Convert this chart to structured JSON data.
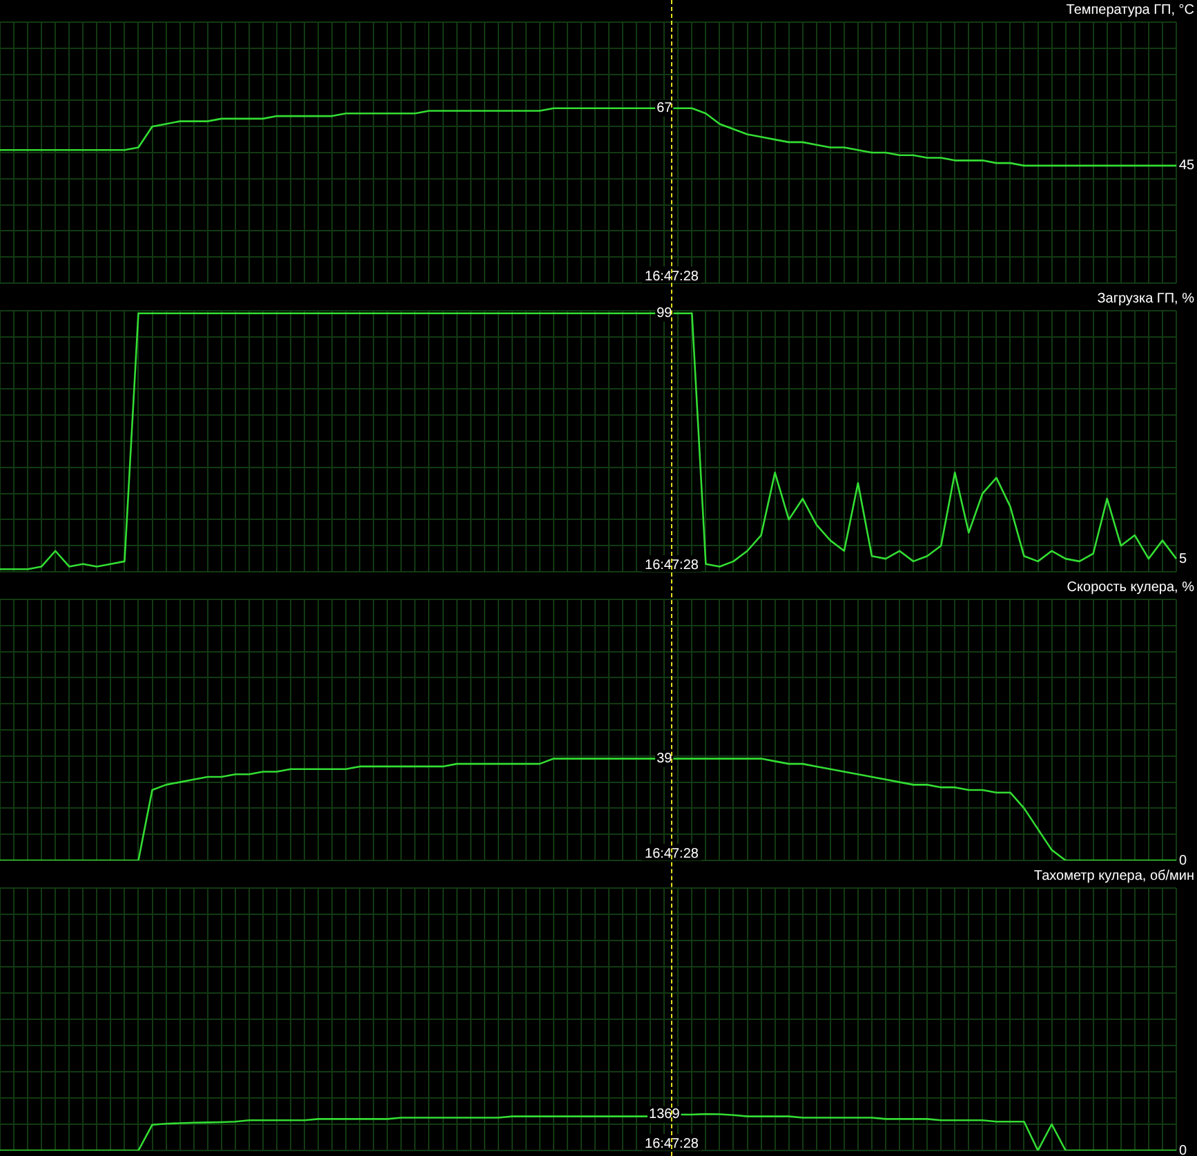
{
  "chart_data": [
    {
      "type": "line",
      "title": "Температура ГП, °C",
      "categories": [
        null,
        null,
        null,
        null,
        null,
        null,
        null,
        null,
        null,
        null,
        null,
        null,
        null,
        null,
        null,
        null,
        null,
        null,
        null,
        null,
        null,
        null,
        null,
        null,
        null,
        null,
        null,
        null,
        null,
        null,
        null,
        null,
        null,
        null,
        null,
        null,
        null,
        null,
        null,
        null,
        null,
        null,
        null,
        null,
        null,
        null,
        null,
        null,
        null,
        null,
        null,
        null,
        null,
        null,
        null,
        null,
        null,
        null,
        null,
        null,
        null,
        null,
        null,
        null,
        null,
        null,
        null,
        null,
        null,
        null,
        null,
        null,
        null,
        null,
        null,
        null,
        null,
        null,
        null,
        null,
        null,
        null,
        null,
        null,
        null,
        null
      ],
      "series": [
        {
          "color": "#33dd33",
          "values": [
            51,
            51,
            51,
            51,
            51,
            51,
            51,
            51,
            51,
            51,
            52,
            60,
            61,
            62,
            62,
            62,
            63,
            63,
            63,
            63,
            64,
            64,
            64,
            64,
            64,
            65,
            65,
            65,
            65,
            65,
            65,
            66,
            66,
            66,
            66,
            66,
            66,
            66,
            66,
            66,
            67,
            67,
            67,
            67,
            67,
            67,
            67,
            67,
            67,
            67,
            67,
            65,
            61,
            59,
            57,
            56,
            55,
            54,
            54,
            53,
            52,
            52,
            51,
            50,
            50,
            49,
            49,
            48,
            48,
            47,
            47,
            47,
            46,
            46,
            45,
            45,
            45,
            45,
            45,
            45,
            45,
            45,
            45,
            45,
            45,
            45
          ],
          "value_labels": [
            null,
            null,
            null,
            null,
            null,
            null,
            null,
            null,
            null,
            null,
            null,
            null,
            null,
            null,
            null,
            null,
            null,
            null,
            null,
            null,
            null,
            null,
            null,
            null,
            null,
            null,
            null,
            null,
            null,
            null,
            null,
            null,
            null,
            null,
            null,
            null,
            null,
            null,
            null,
            null,
            null,
            null,
            null,
            null,
            null,
            null,
            null,
            null,
            "67",
            null,
            null,
            null,
            null,
            null,
            null,
            null,
            null,
            null,
            null,
            null,
            null,
            null,
            null,
            null,
            null,
            null,
            null,
            null,
            null,
            null,
            null,
            null,
            null,
            null,
            null,
            null,
            null,
            null,
            null,
            null,
            null,
            null,
            null,
            null,
            null,
            "45"
          ]
        }
      ],
      "ylim": [
        0,
        100
      ],
      "yticks": [
        {
          "value": 0,
          "label": null
        },
        {
          "value": 10,
          "label": null
        },
        {
          "value": 20,
          "label": null
        },
        {
          "value": 30,
          "label": null
        },
        {
          "value": 40,
          "label": null
        },
        {
          "value": 50,
          "label": null
        },
        {
          "value": 60,
          "label": null
        },
        {
          "value": 70,
          "label": null
        },
        {
          "value": 80,
          "label": null
        },
        {
          "value": 90,
          "label": null
        },
        {
          "value": 100,
          "label": null
        }
      ],
      "grid": true,
      "tick_labels": false,
      "marker": "none",
      "line_style": "solid",
      "annotations": [
        "16:47:28"
      ]
    },
    {
      "type": "line",
      "title": "Загрузка ГП, %",
      "categories": [
        null,
        null,
        null,
        null,
        null,
        null,
        null,
        null,
        null,
        null,
        null,
        null,
        null,
        null,
        null,
        null,
        null,
        null,
        null,
        null,
        null,
        null,
        null,
        null,
        null,
        null,
        null,
        null,
        null,
        null,
        null,
        null,
        null,
        null,
        null,
        null,
        null,
        null,
        null,
        null,
        null,
        null,
        null,
        null,
        null,
        null,
        null,
        null,
        null,
        null,
        null,
        null,
        null,
        null,
        null,
        null,
        null,
        null,
        null,
        null,
        null,
        null,
        null,
        null,
        null,
        null,
        null,
        null,
        null,
        null,
        null,
        null,
        null,
        null,
        null,
        null,
        null,
        null,
        null,
        null,
        null,
        null,
        null,
        null,
        null,
        null
      ],
      "series": [
        {
          "color": "#33dd33",
          "values": [
            1,
            1,
            1,
            2,
            8,
            2,
            3,
            2,
            3,
            4,
            99,
            99,
            99,
            99,
            99,
            99,
            99,
            99,
            99,
            99,
            99,
            99,
            99,
            99,
            99,
            99,
            99,
            99,
            99,
            99,
            99,
            99,
            99,
            99,
            99,
            99,
            99,
            99,
            99,
            99,
            99,
            99,
            99,
            99,
            99,
            99,
            99,
            99,
            99,
            99,
            99,
            3,
            2,
            4,
            8,
            14,
            38,
            20,
            28,
            18,
            12,
            8,
            34,
            6,
            5,
            8,
            4,
            6,
            10,
            38,
            15,
            30,
            36,
            25,
            6,
            4,
            8,
            5,
            4,
            7,
            28,
            10,
            14,
            5,
            12,
            5
          ],
          "value_labels": [
            null,
            null,
            null,
            null,
            null,
            null,
            null,
            null,
            null,
            null,
            null,
            null,
            null,
            null,
            null,
            null,
            null,
            null,
            null,
            null,
            null,
            null,
            null,
            null,
            null,
            null,
            null,
            null,
            null,
            null,
            null,
            null,
            null,
            null,
            null,
            null,
            null,
            null,
            null,
            null,
            null,
            null,
            null,
            null,
            null,
            null,
            null,
            null,
            "99",
            null,
            null,
            null,
            null,
            null,
            null,
            null,
            null,
            null,
            null,
            null,
            null,
            null,
            null,
            null,
            null,
            null,
            null,
            null,
            null,
            null,
            null,
            null,
            null,
            null,
            null,
            null,
            null,
            null,
            null,
            null,
            null,
            null,
            null,
            null,
            null,
            "5"
          ]
        }
      ],
      "ylim": [
        0,
        100
      ],
      "yticks": [
        {
          "value": 0,
          "label": null
        },
        {
          "value": 10,
          "label": null
        },
        {
          "value": 20,
          "label": null
        },
        {
          "value": 30,
          "label": null
        },
        {
          "value": 40,
          "label": null
        },
        {
          "value": 50,
          "label": null
        },
        {
          "value": 60,
          "label": null
        },
        {
          "value": 70,
          "label": null
        },
        {
          "value": 80,
          "label": null
        },
        {
          "value": 90,
          "label": null
        },
        {
          "value": 100,
          "label": null
        }
      ],
      "grid": true,
      "tick_labels": false,
      "marker": "none",
      "line_style": "solid",
      "annotations": [
        "16:47:28"
      ]
    },
    {
      "type": "line",
      "title": "Скорость кулера, %",
      "categories": [
        null,
        null,
        null,
        null,
        null,
        null,
        null,
        null,
        null,
        null,
        null,
        null,
        null,
        null,
        null,
        null,
        null,
        null,
        null,
        null,
        null,
        null,
        null,
        null,
        null,
        null,
        null,
        null,
        null,
        null,
        null,
        null,
        null,
        null,
        null,
        null,
        null,
        null,
        null,
        null,
        null,
        null,
        null,
        null,
        null,
        null,
        null,
        null,
        null,
        null,
        null,
        null,
        null,
        null,
        null,
        null,
        null,
        null,
        null,
        null,
        null,
        null,
        null,
        null,
        null,
        null,
        null,
        null,
        null,
        null,
        null,
        null,
        null,
        null,
        null,
        null,
        null,
        null,
        null,
        null,
        null,
        null,
        null,
        null,
        null,
        null
      ],
      "series": [
        {
          "color": "#33dd33",
          "values": [
            0,
            0,
            0,
            0,
            0,
            0,
            0,
            0,
            0,
            0,
            0,
            27,
            29,
            30,
            31,
            32,
            32,
            33,
            33,
            34,
            34,
            35,
            35,
            35,
            35,
            35,
            36,
            36,
            36,
            36,
            36,
            36,
            36,
            37,
            37,
            37,
            37,
            37,
            37,
            37,
            39,
            39,
            39,
            39,
            39,
            39,
            39,
            39,
            39,
            39,
            39,
            39,
            39,
            39,
            39,
            39,
            38,
            37,
            37,
            36,
            35,
            34,
            33,
            32,
            31,
            30,
            29,
            29,
            28,
            28,
            27,
            27,
            26,
            26,
            20,
            12,
            4,
            0,
            0,
            0,
            0,
            0,
            0,
            0,
            0,
            0
          ],
          "value_labels": [
            null,
            null,
            null,
            null,
            null,
            null,
            null,
            null,
            null,
            null,
            null,
            null,
            null,
            null,
            null,
            null,
            null,
            null,
            null,
            null,
            null,
            null,
            null,
            null,
            null,
            null,
            null,
            null,
            null,
            null,
            null,
            null,
            null,
            null,
            null,
            null,
            null,
            null,
            null,
            null,
            null,
            null,
            null,
            null,
            null,
            null,
            null,
            null,
            "39",
            null,
            null,
            null,
            null,
            null,
            null,
            null,
            null,
            null,
            null,
            null,
            null,
            null,
            null,
            null,
            null,
            null,
            null,
            null,
            null,
            null,
            null,
            null,
            null,
            null,
            null,
            null,
            null,
            null,
            null,
            null,
            null,
            null,
            null,
            null,
            null,
            "0"
          ]
        }
      ],
      "ylim": [
        0,
        100
      ],
      "yticks": [
        {
          "value": 0,
          "label": null
        },
        {
          "value": 10,
          "label": null
        },
        {
          "value": 20,
          "label": null
        },
        {
          "value": 30,
          "label": null
        },
        {
          "value": 40,
          "label": null
        },
        {
          "value": 50,
          "label": null
        },
        {
          "value": 60,
          "label": null
        },
        {
          "value": 70,
          "label": null
        },
        {
          "value": 80,
          "label": null
        },
        {
          "value": 90,
          "label": null
        },
        {
          "value": 100,
          "label": null
        }
      ],
      "grid": true,
      "tick_labels": false,
      "marker": "none",
      "line_style": "solid",
      "annotations": [
        "16:47:28"
      ]
    },
    {
      "type": "line",
      "title": "Тахометр кулера, об/мин",
      "categories": [
        null,
        null,
        null,
        null,
        null,
        null,
        null,
        null,
        null,
        null,
        null,
        null,
        null,
        null,
        null,
        null,
        null,
        null,
        null,
        null,
        null,
        null,
        null,
        null,
        null,
        null,
        null,
        null,
        null,
        null,
        null,
        null,
        null,
        null,
        null,
        null,
        null,
        null,
        null,
        null,
        null,
        null,
        null,
        null,
        null,
        null,
        null,
        null,
        null,
        null,
        null,
        null,
        null,
        null,
        null,
        null,
        null,
        null,
        null,
        null,
        null,
        null,
        null,
        null,
        null,
        null,
        null,
        null,
        null,
        null,
        null,
        null,
        null,
        null,
        null,
        null,
        null,
        null,
        null,
        null,
        null,
        null,
        null,
        null,
        null,
        null
      ],
      "series": [
        {
          "color": "#33dd33",
          "values": [
            0,
            0,
            0,
            0,
            0,
            0,
            0,
            0,
            0,
            0,
            0,
            980,
            1020,
            1040,
            1060,
            1070,
            1080,
            1100,
            1150,
            1150,
            1150,
            1150,
            1150,
            1200,
            1200,
            1200,
            1200,
            1200,
            1200,
            1250,
            1250,
            1250,
            1250,
            1250,
            1250,
            1250,
            1250,
            1300,
            1300,
            1300,
            1300,
            1300,
            1300,
            1300,
            1300,
            1300,
            1300,
            1300,
            1369,
            1369,
            1369,
            1390,
            1380,
            1350,
            1300,
            1300,
            1300,
            1300,
            1250,
            1250,
            1250,
            1250,
            1250,
            1250,
            1200,
            1200,
            1200,
            1200,
            1150,
            1150,
            1150,
            1150,
            1100,
            1100,
            1100,
            0,
            1000,
            0,
            0,
            0,
            0,
            0,
            0,
            0,
            0,
            0
          ],
          "value_labels": [
            null,
            null,
            null,
            null,
            null,
            null,
            null,
            null,
            null,
            null,
            null,
            null,
            null,
            null,
            null,
            null,
            null,
            null,
            null,
            null,
            null,
            null,
            null,
            null,
            null,
            null,
            null,
            null,
            null,
            null,
            null,
            null,
            null,
            null,
            null,
            null,
            null,
            null,
            null,
            null,
            null,
            null,
            null,
            null,
            null,
            null,
            null,
            null,
            "1369",
            null,
            null,
            null,
            null,
            null,
            null,
            null,
            null,
            null,
            null,
            null,
            null,
            null,
            null,
            null,
            null,
            null,
            null,
            null,
            null,
            null,
            null,
            null,
            null,
            null,
            null,
            null,
            null,
            null,
            null,
            null,
            null,
            null,
            null,
            null,
            null,
            "0"
          ]
        }
      ],
      "ylim": [
        0,
        10000
      ],
      "yticks": [
        {
          "value": 0,
          "label": null
        },
        {
          "value": 1000,
          "label": null
        },
        {
          "value": 2000,
          "label": null
        },
        {
          "value": 3000,
          "label": null
        },
        {
          "value": 4000,
          "label": null
        },
        {
          "value": 5000,
          "label": null
        },
        {
          "value": 6000,
          "label": null
        },
        {
          "value": 7000,
          "label": null
        },
        {
          "value": 8000,
          "label": null
        },
        {
          "value": 9000,
          "label": null
        },
        {
          "value": 10000,
          "label": null
        }
      ],
      "grid": true,
      "tick_labels": false,
      "marker": "none",
      "line_style": "solid",
      "annotations": [
        "16:47:28"
      ]
    }
  ]
}
